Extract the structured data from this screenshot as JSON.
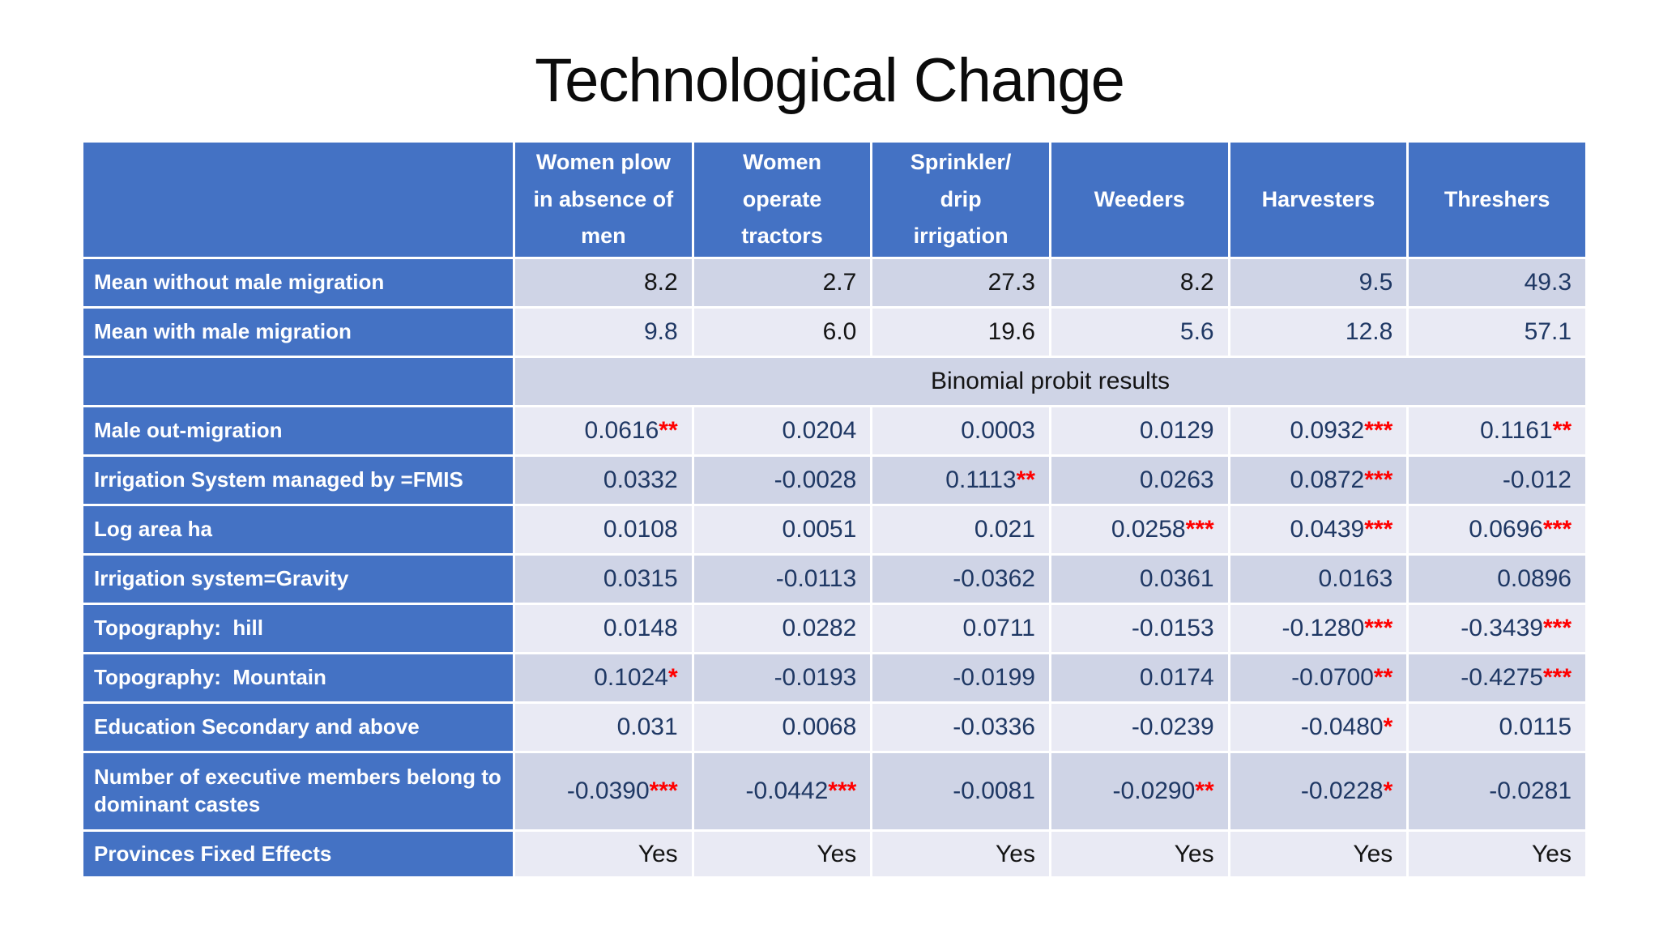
{
  "title": "Technological Change",
  "colors": {
    "accent_blue": "#4472C4",
    "band_dark": "#CFD4E6",
    "band_light": "#E9EAF4",
    "text_navy": "#1F3864",
    "text_black": "#141414",
    "star_red": "#FF0000",
    "header_text": "#FFFFFF",
    "title_black": "#0B0B0B"
  },
  "table": {
    "columns": [
      "",
      "Women plow\nin absence of\nmen",
      "Women\noperate\ntractors",
      "Sprinkler/\ndrip\nirrigation",
      "Weeders",
      "Harvesters",
      "Threshers"
    ],
    "rows": [
      {
        "label": "Mean without male migration",
        "cells": [
          {
            "v": "8.2",
            "c": "black"
          },
          {
            "v": "2.7",
            "c": "black"
          },
          {
            "v": "27.3",
            "c": "black"
          },
          {
            "v": "8.2",
            "c": "black"
          },
          {
            "v": "9.5",
            "c": "navy"
          },
          {
            "v": "49.3",
            "c": "navy"
          }
        ]
      },
      {
        "label": "Mean with male migration",
        "cells": [
          {
            "v": "9.8",
            "c": "navy"
          },
          {
            "v": "6.0",
            "c": "black"
          },
          {
            "v": "19.6",
            "c": "black"
          },
          {
            "v": "5.6",
            "c": "navy"
          },
          {
            "v": "12.8",
            "c": "navy"
          },
          {
            "v": "57.1",
            "c": "navy"
          }
        ]
      },
      {
        "label": "",
        "span": "Binomial probit results"
      },
      {
        "label": "Male out-migration",
        "cells": [
          {
            "v": "0.0616",
            "s": "**"
          },
          {
            "v": "0.0204"
          },
          {
            "v": "0.0003"
          },
          {
            "v": "0.0129"
          },
          {
            "v": "0.0932",
            "s": "***"
          },
          {
            "v": "0.1161",
            "s": "**"
          }
        ]
      },
      {
        "label": "Irrigation System managed by =FMIS",
        "cells": [
          {
            "v": "0.0332"
          },
          {
            "v": "-0.0028"
          },
          {
            "v": "0.1113",
            "s": "**"
          },
          {
            "v": "0.0263"
          },
          {
            "v": "0.0872",
            "s": "***"
          },
          {
            "v": "-0.012"
          }
        ]
      },
      {
        "label": "Log area ha",
        "cells": [
          {
            "v": "0.0108"
          },
          {
            "v": "0.0051"
          },
          {
            "v": "0.021"
          },
          {
            "v": "0.0258",
            "s": "***"
          },
          {
            "v": "0.0439",
            "s": "***"
          },
          {
            "v": "0.0696",
            "s": "***"
          }
        ]
      },
      {
        "label": "Irrigation system=Gravity",
        "cells": [
          {
            "v": "0.0315"
          },
          {
            "v": "-0.0113"
          },
          {
            "v": "-0.0362"
          },
          {
            "v": "0.0361"
          },
          {
            "v": "0.0163"
          },
          {
            "v": "0.0896"
          }
        ]
      },
      {
        "label": "Topography:  hill",
        "cells": [
          {
            "v": "0.0148"
          },
          {
            "v": "0.0282"
          },
          {
            "v": "0.0711"
          },
          {
            "v": "-0.0153"
          },
          {
            "v": "-0.1280",
            "s": "***"
          },
          {
            "v": "-0.3439",
            "s": "***"
          }
        ]
      },
      {
        "label": "Topography:  Mountain",
        "cells": [
          {
            "v": "0.1024",
            "s": "*"
          },
          {
            "v": "-0.0193"
          },
          {
            "v": "-0.0199"
          },
          {
            "v": "0.0174"
          },
          {
            "v": "-0.0700",
            "s": "**"
          },
          {
            "v": "-0.4275",
            "s": "***"
          }
        ]
      },
      {
        "label": "Education Secondary and above",
        "cells": [
          {
            "v": "0.031"
          },
          {
            "v": "0.0068"
          },
          {
            "v": "-0.0336"
          },
          {
            "v": "-0.0239"
          },
          {
            "v": "-0.0480",
            "s": "*"
          },
          {
            "v": "0.0115"
          }
        ]
      },
      {
        "label": "Number of executive members belong to dominant castes",
        "cells": [
          {
            "v": "-0.0390",
            "s": "***"
          },
          {
            "v": "-0.0442",
            "s": "***"
          },
          {
            "v": "-0.0081"
          },
          {
            "v": "-0.0290",
            "s": "**"
          },
          {
            "v": "-0.0228",
            "s": "*"
          },
          {
            "v": "-0.0281"
          }
        ]
      },
      {
        "label": "Provinces Fixed Effects",
        "cells": [
          {
            "v": "Yes",
            "c": "black"
          },
          {
            "v": "Yes",
            "c": "black"
          },
          {
            "v": "Yes",
            "c": "black"
          },
          {
            "v": "Yes",
            "c": "black"
          },
          {
            "v": "Yes",
            "c": "black"
          },
          {
            "v": "Yes",
            "c": "black"
          }
        ]
      }
    ]
  }
}
